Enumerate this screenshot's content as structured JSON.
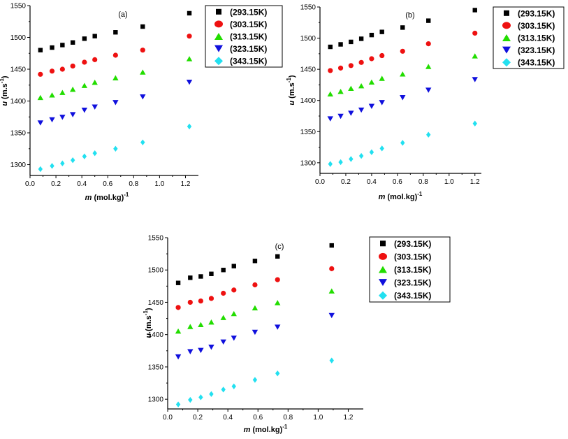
{
  "chart_data": [
    {
      "type": "scatter",
      "panel_label": "(a)",
      "xlabel_italic": "m",
      "xlabel_rest": " (mol.kg)",
      "xlabel_sup": "-1",
      "ylabel_italic": "u",
      "ylabel_rest": " (m.s",
      "ylabel_sup": "-1",
      "ylabel_close": ")",
      "xlim": [
        0.0,
        1.3
      ],
      "ylim": [
        1283,
        1550
      ],
      "xticks": [
        "0.0",
        "0.2",
        "0.4",
        "0.6",
        "0.8",
        "1.0",
        "1.2"
      ],
      "yticks": [
        "1300",
        "1350",
        "1400",
        "1450",
        "1500",
        "1550"
      ],
      "legend_position": "right",
      "x": [
        0.08,
        0.17,
        0.25,
        0.33,
        0.42,
        0.5,
        0.66,
        0.87,
        1.23
      ],
      "series": [
        {
          "name": "(293.15K)",
          "marker": "square",
          "color": "#000000",
          "values": [
            1480,
            1484,
            1488,
            1492,
            1498,
            1502,
            1508,
            1517,
            1538
          ]
        },
        {
          "name": "(303.15K)",
          "marker": "circle",
          "color": "#ee1111",
          "values": [
            1442,
            1447,
            1450,
            1455,
            1461,
            1465,
            1472,
            1480,
            1502
          ]
        },
        {
          "name": "(313.15K)",
          "marker": "triangle-up",
          "color": "#22dd00",
          "values": [
            1405,
            1409,
            1413,
            1418,
            1424,
            1429,
            1436,
            1445,
            1466
          ]
        },
        {
          "name": "(323.15K)",
          "marker": "triangle-down",
          "color": "#1010dd",
          "values": [
            1366,
            1371,
            1375,
            1379,
            1386,
            1391,
            1398,
            1407,
            1430
          ]
        },
        {
          "name": "(343.15K)",
          "marker": "diamond",
          "color": "#22e0f0",
          "values": [
            1293,
            1298,
            1302,
            1307,
            1313,
            1318,
            1325,
            1335,
            1360
          ]
        }
      ]
    },
    {
      "type": "scatter",
      "panel_label": "(b)",
      "xlabel_italic": "m",
      "xlabel_rest": " (mol.kg)",
      "xlabel_sup": "-1",
      "ylabel_italic": "u",
      "ylabel_rest": " (m.s",
      "ylabel_sup": "-1",
      "ylabel_close": ")",
      "xlim": [
        0.0,
        1.25
      ],
      "ylim": [
        1283,
        1550
      ],
      "xticks": [
        "0.0",
        "0.2",
        "0.4",
        "0.6",
        "0.8",
        "1.0",
        "1.2"
      ],
      "yticks": [
        "1300",
        "1350",
        "1400",
        "1450",
        "1500",
        "1550"
      ],
      "legend_position": "right",
      "x": [
        0.08,
        0.16,
        0.24,
        0.32,
        0.4,
        0.48,
        0.64,
        0.84,
        1.2
      ],
      "series": [
        {
          "name": "(293.15K)",
          "marker": "square",
          "color": "#000000",
          "values": [
            1486,
            1490,
            1494,
            1499,
            1505,
            1510,
            1517,
            1528,
            1545
          ]
        },
        {
          "name": "(303.15K)",
          "marker": "circle",
          "color": "#ee1111",
          "values": [
            1448,
            1452,
            1456,
            1461,
            1467,
            1472,
            1479,
            1491,
            1508
          ]
        },
        {
          "name": "(313.15K)",
          "marker": "triangle-up",
          "color": "#22dd00",
          "values": [
            1410,
            1414,
            1419,
            1423,
            1429,
            1435,
            1442,
            1454,
            1471
          ]
        },
        {
          "name": "(323.15K)",
          "marker": "triangle-down",
          "color": "#1010dd",
          "values": [
            1371,
            1375,
            1380,
            1385,
            1391,
            1397,
            1405,
            1417,
            1434
          ]
        },
        {
          "name": "(343.15K)",
          "marker": "diamond",
          "color": "#22e0f0",
          "values": [
            1298,
            1301,
            1306,
            1311,
            1317,
            1323,
            1332,
            1345,
            1363
          ]
        }
      ]
    },
    {
      "type": "scatter",
      "panel_label": "(c)",
      "xlabel_italic": "m",
      "xlabel_rest": " (mol.kg)",
      "xlabel_sup": "-1",
      "ylabel_italic": "u",
      "ylabel_rest": " (m.s",
      "ylabel_sup": "-1",
      "ylabel_close": ")",
      "xlim": [
        0.0,
        1.3
      ],
      "ylim": [
        1285,
        1550
      ],
      "xticks": [
        "0.0",
        "0.2",
        "0.4",
        "0.6",
        "0.8",
        "1.0",
        "1.2"
      ],
      "yticks": [
        "1300",
        "1350",
        "1400",
        "1450",
        "1500",
        "1550"
      ],
      "legend_position": "right",
      "x": [
        0.07,
        0.15,
        0.22,
        0.29,
        0.37,
        0.44,
        0.58,
        0.73,
        1.09
      ],
      "series": [
        {
          "name": "(293.15K)",
          "marker": "square",
          "color": "#000000",
          "values": [
            1480,
            1488,
            1490,
            1494,
            1500,
            1506,
            1514,
            1521,
            1538
          ]
        },
        {
          "name": "(303.15K)",
          "marker": "circle",
          "color": "#ee1111",
          "values": [
            1442,
            1450,
            1452,
            1456,
            1464,
            1469,
            1477,
            1485,
            1502
          ]
        },
        {
          "name": "(313.15K)",
          "marker": "triangle-up",
          "color": "#22dd00",
          "values": [
            1405,
            1412,
            1415,
            1419,
            1426,
            1432,
            1441,
            1449,
            1467
          ]
        },
        {
          "name": "(323.15K)",
          "marker": "triangle-down",
          "color": "#1010dd",
          "values": [
            1366,
            1374,
            1376,
            1381,
            1389,
            1395,
            1404,
            1412,
            1430
          ]
        },
        {
          "name": "(343.15K)",
          "marker": "diamond",
          "color": "#22e0f0",
          "values": [
            1292,
            1299,
            1303,
            1308,
            1315,
            1320,
            1330,
            1340,
            1360
          ]
        }
      ]
    }
  ]
}
